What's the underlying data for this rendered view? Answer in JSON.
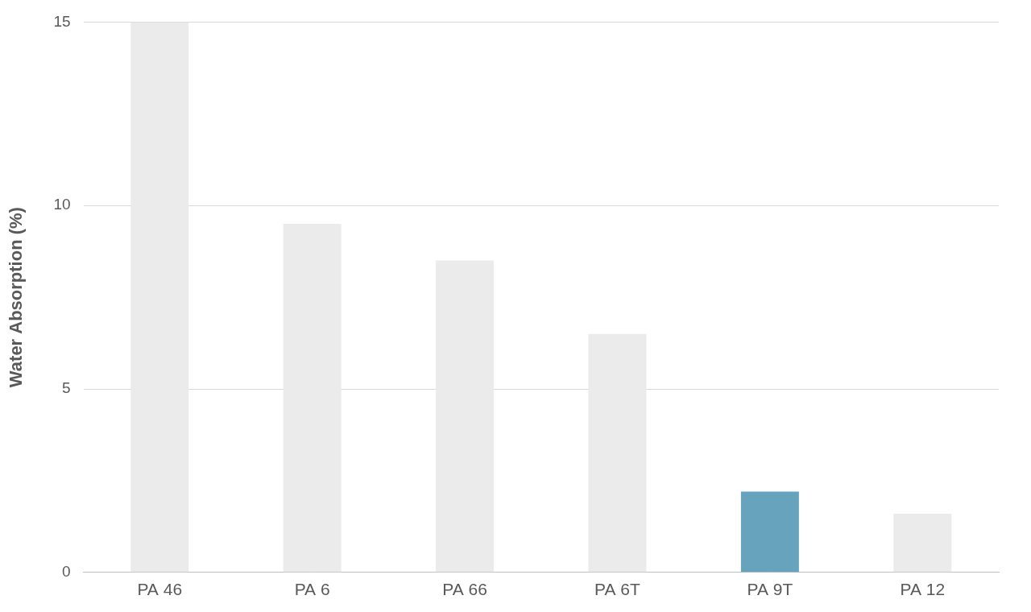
{
  "chart_data": {
    "type": "bar",
    "ylabel": "Water Absorption (%)",
    "categories": [
      "PA 46",
      "PA 6",
      "PA 66",
      "PA 6T",
      "PA 9T",
      "PA 12"
    ],
    "values": [
      15,
      9.5,
      8.5,
      6.5,
      2.2,
      1.6
    ],
    "colors": [
      "#ebebeb",
      "#ebebeb",
      "#ebebeb",
      "#ebebeb",
      "#67a3bd",
      "#ebebeb"
    ],
    "ylim": [
      0,
      15
    ],
    "yticks": [
      0,
      5,
      10,
      15
    ],
    "grid": true
  }
}
